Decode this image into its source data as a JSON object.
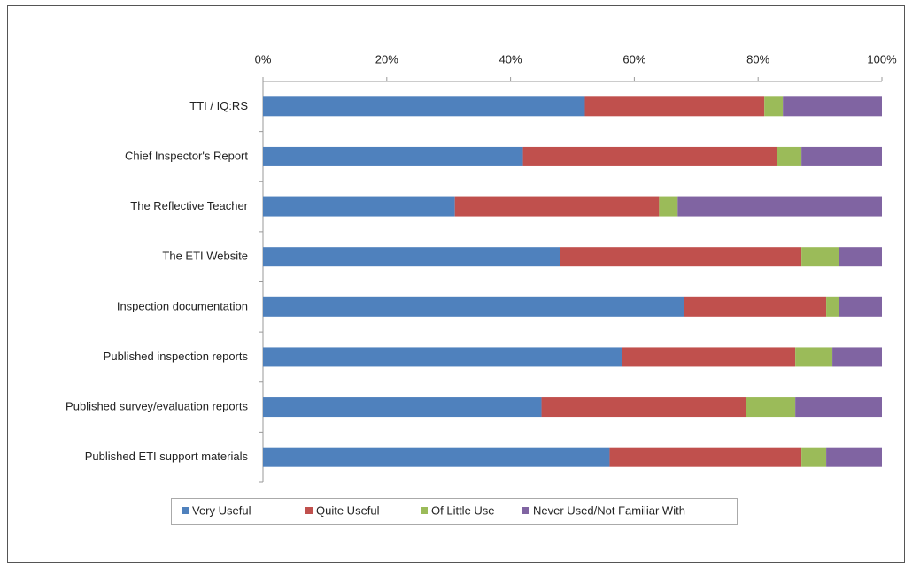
{
  "chart_data": {
    "type": "stacked_bar_horizontal",
    "categories": [
      "TTI / IQ:RS",
      "Chief Inspector's Report",
      "The Reflective Teacher",
      "The ETI Website",
      "Inspection documentation",
      "Published inspection reports",
      "Published survey/evaluation reports",
      "Published ETI support materials"
    ],
    "series": [
      {
        "name": "Very Useful",
        "color": "#4f81bd",
        "values": [
          52,
          42,
          31,
          48,
          68,
          58,
          45,
          56
        ]
      },
      {
        "name": "Quite Useful",
        "color": "#c0504d",
        "values": [
          29,
          41,
          33,
          39,
          23,
          28,
          33,
          31
        ]
      },
      {
        "name": "Of Little Use",
        "color": "#9bbb59",
        "values": [
          3,
          4,
          3,
          6,
          2,
          6,
          8,
          4
        ]
      },
      {
        "name": "Never Used/Not Familiar With",
        "color": "#8064a2",
        "values": [
          16,
          13,
          33,
          7,
          7,
          8,
          14,
          9
        ]
      }
    ],
    "xlim": [
      0,
      100
    ],
    "xticks": [
      {
        "value": 0,
        "label": "0%"
      },
      {
        "value": 20,
        "label": "20%"
      },
      {
        "value": 40,
        "label": "40%"
      },
      {
        "value": 60,
        "label": "60%"
      },
      {
        "value": 80,
        "label": "80%"
      },
      {
        "value": 100,
        "label": "100%"
      }
    ],
    "legend": "bottom"
  }
}
